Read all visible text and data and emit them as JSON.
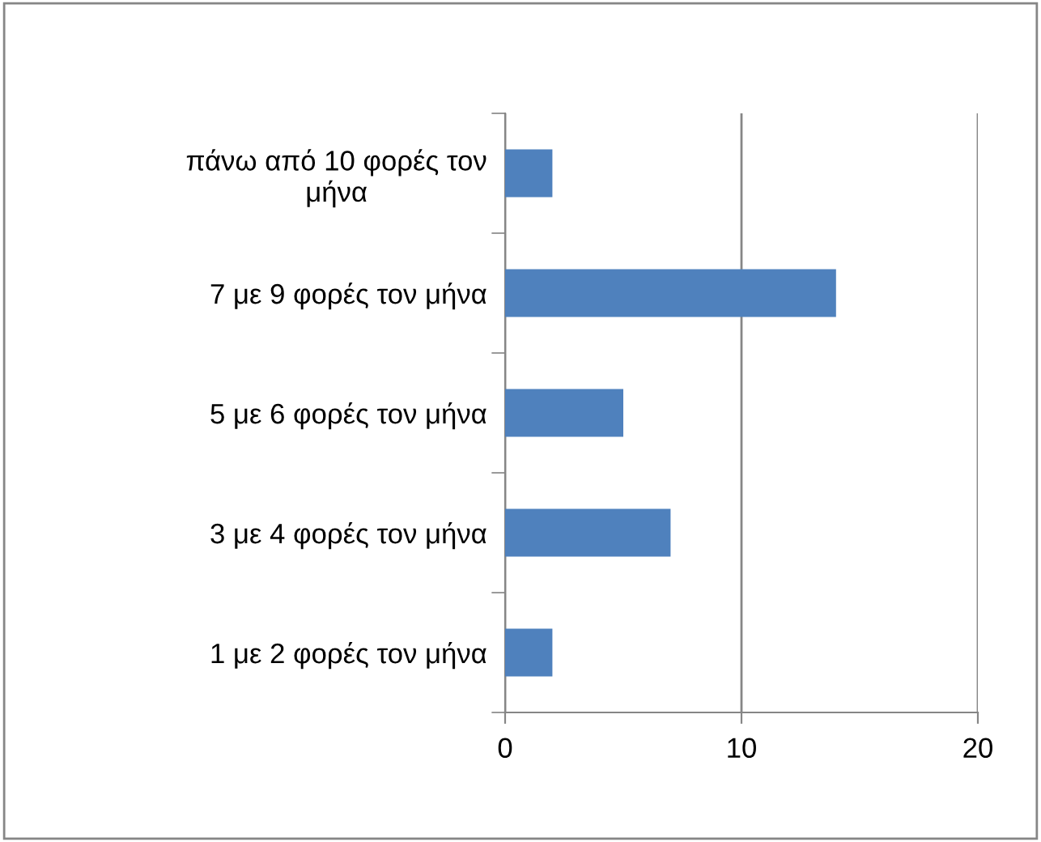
{
  "chart_data": {
    "type": "bar",
    "orientation": "horizontal",
    "categories": [
      "πάνω από 10 φορές τον μήνα",
      "7 με 9 φορές τον μήνα",
      "5 με 6 φορές τον μήνα",
      "3 με 4 φορές τον μήνα",
      "1 με 2 φορές τον μήνα"
    ],
    "values": [
      2,
      14,
      5,
      7,
      2
    ],
    "color": "#4f81bd",
    "xlim": [
      0,
      20
    ],
    "xticks": [
      0,
      10,
      20
    ],
    "grid": "x",
    "legend": false
  }
}
